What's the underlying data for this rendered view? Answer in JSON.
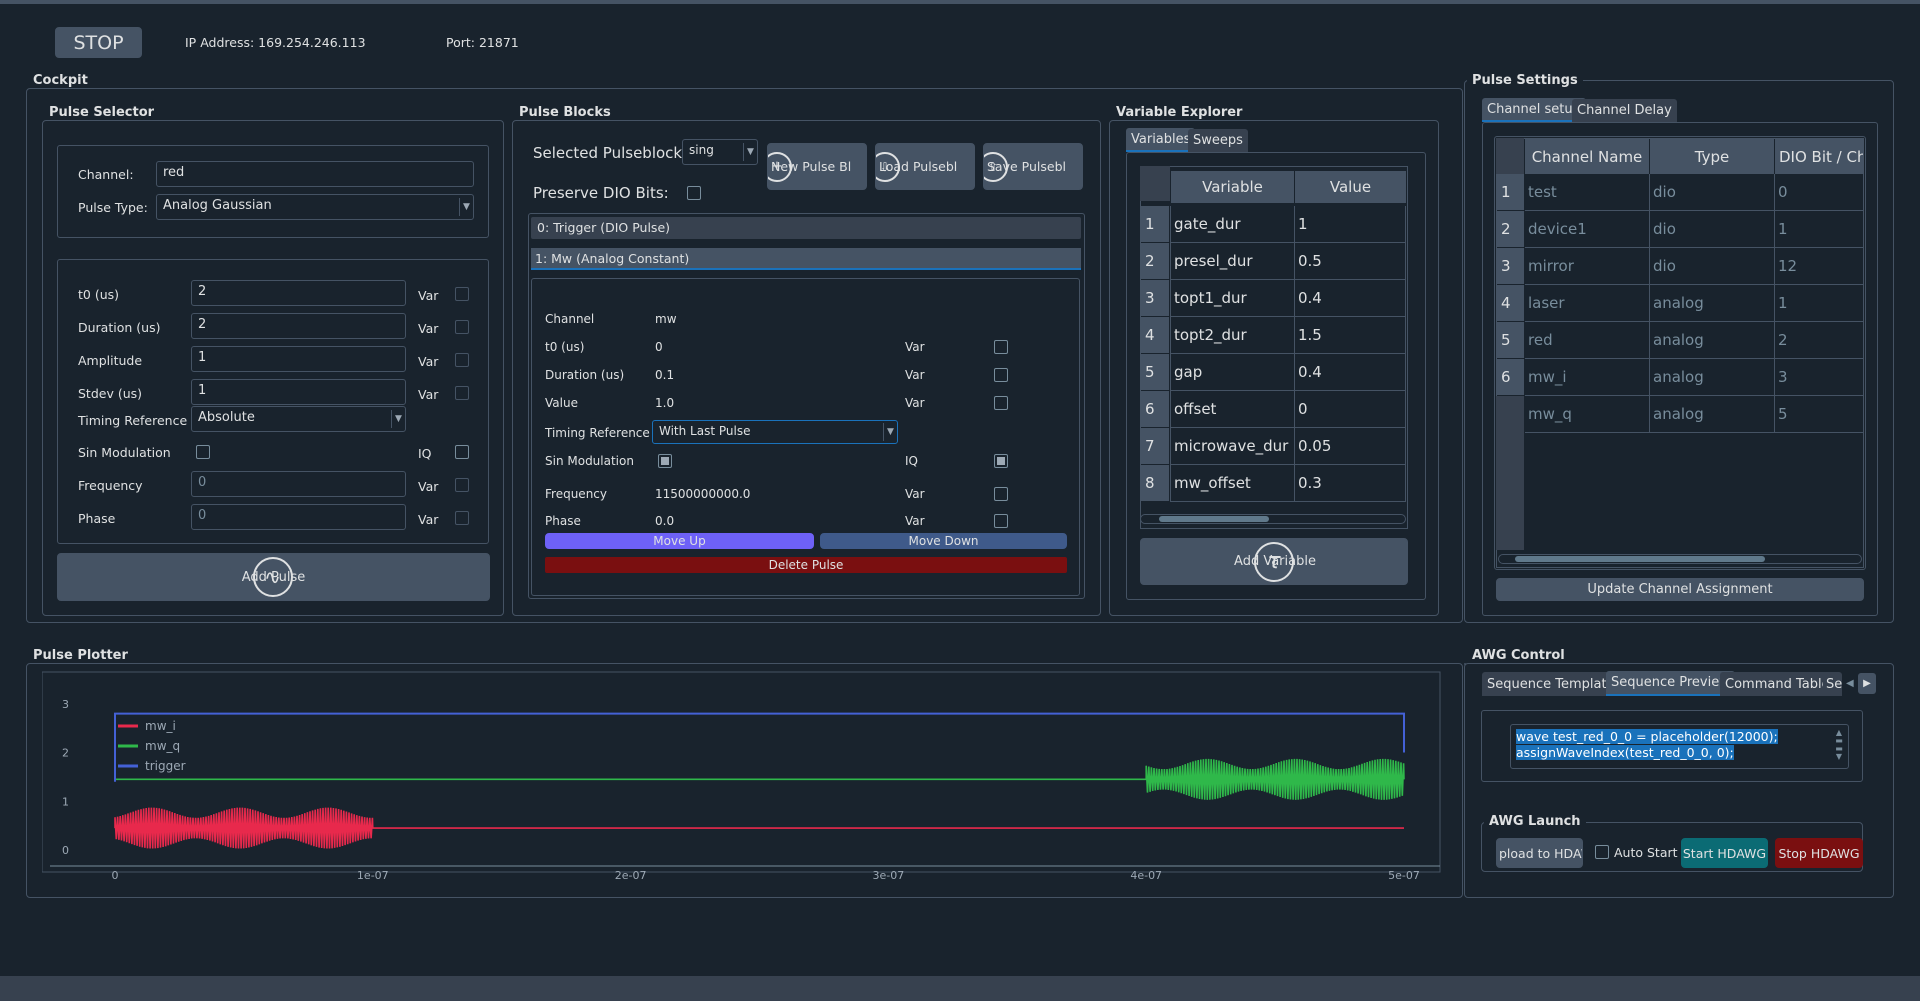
{
  "top": {
    "stop_label": "STOP",
    "ip": "IP Address: 169.254.246.113",
    "port": "Port: 21871"
  },
  "groups": {
    "cockpit": "Cockpit",
    "pulse_selector": "Pulse Selector",
    "pulse_blocks": "Pulse Blocks",
    "variable_explorer": "Variable Explorer",
    "pulse_settings": "Pulse Settings",
    "pulse_plotter": "Pulse Plotter",
    "awg_control": "AWG Control",
    "awg_launch": "AWG Launch"
  },
  "selector": {
    "channel_label": "Channel:",
    "channel_value": "red",
    "type_label": "Pulse Type:",
    "type_value": "Analog Gaussian",
    "params": [
      {
        "label": "t0 (us)",
        "value": "2",
        "var": "Var"
      },
      {
        "label": "Duration (us)",
        "value": "2",
        "var": "Var"
      },
      {
        "label": "Amplitude",
        "value": "1",
        "var": "Var"
      },
      {
        "label": "Stdev (us)",
        "value": "1",
        "var": "Var"
      }
    ],
    "timing_label": "Timing Reference",
    "timing_value": "Absolute",
    "sin_label": "Sin Modulation",
    "iq_label": "IQ",
    "freq_label": "Frequency",
    "freq_value": "0",
    "freq_var": "Var",
    "phase_label": "Phase",
    "phase_value": "0",
    "phase_var": "Var",
    "add_pulse": "Add Pulse"
  },
  "blocks": {
    "selected_label": "Selected Pulseblocks:",
    "selected_value": "sing",
    "preserve_label": "Preserve DIO Bits:",
    "new_btn": "New Pulse Bl",
    "load_btn": "Load Pulsebl",
    "save_btn": "Save Pulsebl",
    "items": [
      "0: Trigger (DIO Pulse)",
      "1: Mw (Analog Constant)"
    ],
    "detail": {
      "channel_label": "Channel",
      "channel_value": "mw",
      "t0_label": "t0 (us)",
      "t0_value": "0",
      "dur_label": "Duration (us)",
      "dur_value": "0.1",
      "val_label": "Value",
      "val_value": "1.0",
      "var": "Var",
      "timing_label": "Timing Reference",
      "timing_value": "With Last Pulse",
      "sin_label": "Sin Modulation",
      "iq_label": "IQ",
      "freq_label": "Frequency",
      "freq_value": "11500000000.0",
      "phase_label": "Phase",
      "phase_value": "0.0"
    },
    "move_up": "Move Up",
    "move_down": "Move Down",
    "delete": "Delete Pulse"
  },
  "varexp": {
    "tabs": [
      "Variables",
      "Sweeps"
    ],
    "headers": [
      "Variable",
      "Value"
    ],
    "rows": [
      {
        "n": "1",
        "name": "gate_dur",
        "value": "1"
      },
      {
        "n": "2",
        "name": "presel_dur",
        "value": "0.5"
      },
      {
        "n": "3",
        "name": "topt1_dur",
        "value": "0.4"
      },
      {
        "n": "4",
        "name": "topt2_dur",
        "value": "1.5"
      },
      {
        "n": "5",
        "name": "gap",
        "value": "0.4"
      },
      {
        "n": "6",
        "name": "offset",
        "value": "0"
      },
      {
        "n": "7",
        "name": "microwave_dur",
        "value": "0.05"
      },
      {
        "n": "8",
        "name": "mw_offset",
        "value": "0.3"
      }
    ],
    "add_var": "Add Variable"
  },
  "settings": {
    "tabs": [
      "Channel setup",
      "Channel Delay"
    ],
    "headers": [
      "Channel Name",
      "Type",
      "DIO Bit / Cha"
    ],
    "rows": [
      {
        "n": "1",
        "name": "test",
        "type": "dio",
        "bit": "0"
      },
      {
        "n": "2",
        "name": "device1",
        "type": "dio",
        "bit": "1"
      },
      {
        "n": "3",
        "name": "mirror",
        "type": "dio",
        "bit": "12"
      },
      {
        "n": "4",
        "name": "laser",
        "type": "analog",
        "bit": "1"
      },
      {
        "n": "5",
        "name": "red",
        "type": "analog",
        "bit": "2"
      },
      {
        "n": "6",
        "name": "mw_i",
        "type": "analog",
        "bit": "3"
      },
      {
        "n": "7",
        "name": "mw_q",
        "type": "analog",
        "bit": "5"
      }
    ],
    "update_btn": "Update Channel Assignment"
  },
  "plotter": {
    "chart_data": {
      "type": "line",
      "xlim": [
        0,
        5e-07
      ],
      "ylim": [
        0,
        3
      ],
      "xticks": [
        "0",
        "1e-07",
        "2e-07",
        "3e-07",
        "4e-07",
        "5e-07"
      ],
      "yticks": [
        "0",
        "1",
        "2",
        "3"
      ],
      "legend_placement": "top-left",
      "series": [
        {
          "name": "mw_i",
          "color": "#e8294c",
          "baseline": 0.45,
          "osc_from": 0,
          "osc_to": 1e-07,
          "osc_amp": 0.42
        },
        {
          "name": "mw_q",
          "color": "#2fb84a",
          "baseline": 1.45,
          "osc_from": 4e-07,
          "osc_to": 5e-07,
          "osc_amp": 0.42
        },
        {
          "name": "trigger",
          "color": "#4461d6",
          "points": [
            [
              0,
              1.4
            ],
            [
              0,
              2.8
            ],
            [
              5e-07,
              2.8
            ],
            [
              5e-07,
              2.0
            ]
          ]
        }
      ]
    }
  },
  "awg": {
    "tabs": [
      "Sequence Template",
      "Sequence Preview",
      "Command Table",
      "Se"
    ],
    "code": [
      "wave test_red_0_0 = placeholder(12000);",
      "assignWaveIndex(test_red_0_0, 0);"
    ],
    "upload": "pload to HDAW",
    "auto_start": "Auto Start",
    "start": "Start HDAWG",
    "stop": "Stop HDAWG"
  },
  "colors": {
    "bg": "#19232d",
    "panel_border": "#455364",
    "move_up": "#6e61f7",
    "move_down": "#3f5a8a",
    "delete": "#7a0f10",
    "start": "#0b6b74",
    "stop": "#7a0f10"
  }
}
